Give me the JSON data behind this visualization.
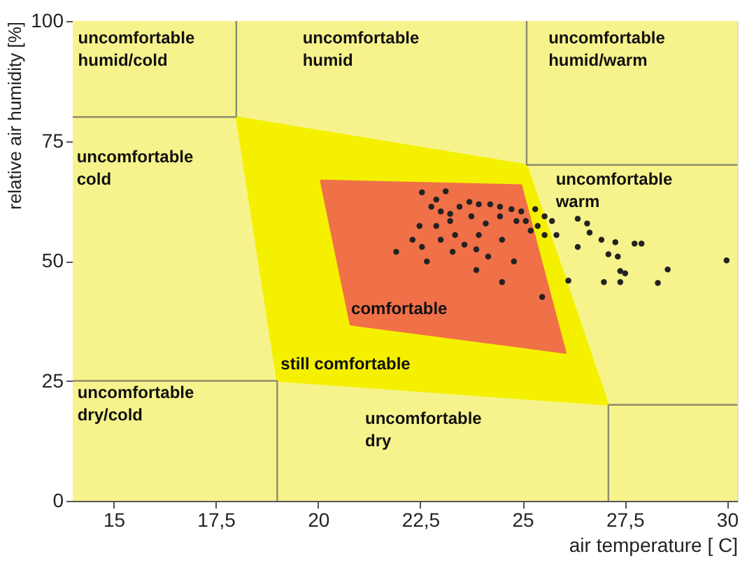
{
  "chart_data": {
    "type": "scatter",
    "xlabel": "air temperature [ C]",
    "ylabel": "relative air humidity [%]",
    "xlim": [
      14,
      30.25
    ],
    "ylim": [
      0,
      100
    ],
    "xticks": [
      15,
      {
        "value": 17.5,
        "label": "17,5"
      },
      20,
      {
        "value": 22.5,
        "label": "22,5"
      },
      25,
      {
        "value": 27.5,
        "label": "27,5"
      },
      30
    ],
    "yticks": [
      0,
      25,
      50,
      75,
      100
    ],
    "bands": [
      {
        "axis": "x",
        "from": 14,
        "to": 30.25,
        "color": "#f7f38c"
      }
    ],
    "series": [
      {
        "type": "area",
        "color": "#f4f000",
        "x": [
          18,
          25.1,
          27.1,
          19,
          18
        ],
        "values": [
          80,
          70,
          20,
          25,
          80
        ]
      },
      {
        "type": "area",
        "color": "#f07048",
        "x": [
          20.06,
          24.97,
          26.06,
          20.79,
          20.06
        ],
        "values": [
          66.8,
          65.8,
          30.8,
          36.7,
          66.8
        ]
      },
      {
        "type": "line",
        "color": "#8c8c6c",
        "x": [
          18,
          18
        ],
        "values": [
          100,
          80
        ]
      },
      {
        "type": "line",
        "color": "#8c8c6c",
        "x": [
          14,
          18
        ],
        "values": [
          80,
          80
        ]
      },
      {
        "type": "line",
        "color": "#8c8c6c",
        "x": [
          25.1,
          25.1
        ],
        "values": [
          100,
          70
        ]
      },
      {
        "type": "line",
        "color": "#8c8c6c",
        "x": [
          25.1,
          30.25
        ],
        "values": [
          70,
          70
        ]
      },
      {
        "type": "line",
        "color": "#8c8c6c",
        "x": [
          27.1,
          30.25
        ],
        "values": [
          20,
          20
        ]
      },
      {
        "type": "line",
        "color": "#8c8c6c",
        "x": [
          27.1,
          27.1
        ],
        "values": [
          20,
          0
        ]
      },
      {
        "type": "line",
        "color": "#8c8c6c",
        "x": [
          14,
          19
        ],
        "values": [
          25,
          25
        ]
      },
      {
        "type": "line",
        "color": "#8c8c6c",
        "x": [
          19,
          19
        ],
        "values": [
          25,
          0
        ]
      },
      {
        "color": "#222222",
        "marker": "circle",
        "x": [
          22.54,
          22.89,
          23.12,
          22.77,
          23.0,
          23.23,
          23.46,
          23.7,
          23.93,
          24.21,
          24.45,
          24.73,
          24.97,
          25.31,
          25.54,
          25.72,
          25.08,
          25.37,
          25.54,
          25.83,
          26.35,
          26.58,
          26.64,
          26.93,
          27.27,
          27.74,
          27.91,
          26.35,
          27.1,
          27.33,
          27.39,
          27.51,
          28.55,
          29.99,
          26.12,
          26.99,
          27.39,
          28.31,
          25.48,
          24.5,
          23.87,
          24.79,
          24.16,
          23.87,
          23.58,
          23.29,
          23.0,
          22.66,
          22.31,
          22.48,
          21.91,
          22.89,
          23.23,
          24.1,
          24.45,
          23.75,
          24.5,
          23.93,
          23.35,
          22.54,
          24.85,
          25.2
        ],
        "values": [
          64.3,
          62.8,
          64.5,
          61.3,
          60.3,
          59.8,
          61.3,
          62.3,
          61.8,
          61.8,
          61.3,
          60.8,
          60.3,
          60.8,
          59.3,
          58.3,
          58.3,
          57.3,
          55.4,
          55.4,
          58.8,
          57.8,
          55.9,
          54.4,
          53.9,
          53.6,
          53.6,
          52.9,
          51.4,
          50.9,
          47.9,
          47.4,
          48.2,
          50.1,
          45.9,
          45.6,
          45.6,
          45.4,
          42.5,
          45.6,
          48.1,
          49.9,
          50.9,
          52.4,
          53.4,
          51.9,
          54.4,
          49.9,
          54.4,
          57.3,
          51.9,
          57.3,
          58.3,
          57.8,
          59.3,
          59.3,
          54.4,
          55.4,
          55.4,
          52.9,
          58.3,
          56.3
        ]
      }
    ],
    "annotations": [
      "uncomfortable\nhumid/cold",
      "uncomfortable\nhumid",
      "uncomfortable\nhumid/warm",
      "uncomfortable\ncold",
      "uncomfortable\nwarm",
      "comfortable",
      "still comfortable",
      "uncomfortable\ndry/cold",
      "uncomfortable\ndry"
    ]
  }
}
